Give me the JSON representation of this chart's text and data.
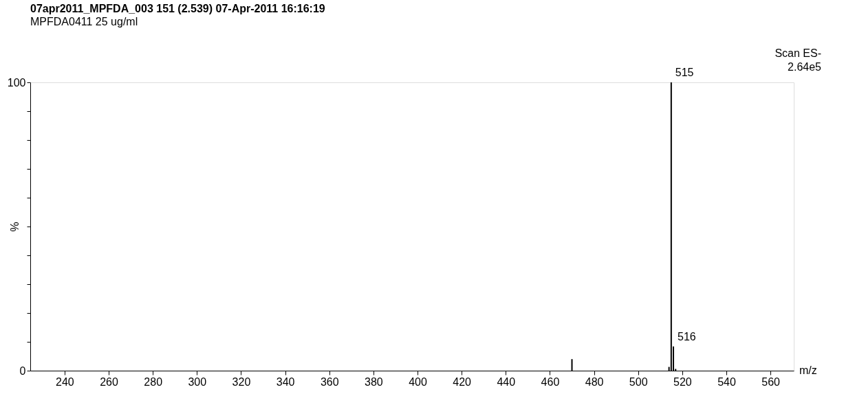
{
  "chart_data": {
    "type": "bar",
    "title": "07apr2011_MPFDA_003  151 (2.539)          07-Apr-2011          16:16:19",
    "subtitle": "MPFDA0411 25 ug/ml",
    "xlabel": "m/z",
    "ylabel": "%",
    "annotations": [
      "Scan ES-",
      "2.64e5",
      {
        "text": "515",
        "x": 515,
        "y": 100
      },
      {
        "text": "516",
        "x": 516,
        "y": 8.4
      }
    ],
    "x": [
      470,
      514,
      515,
      516,
      517
    ],
    "values": [
      4,
      1.3,
      100,
      8.4,
      0.6
    ],
    "color": "#000000",
    "xlim": [
      226,
      569
    ],
    "xticks": [
      240,
      260,
      280,
      300,
      320,
      340,
      360,
      380,
      400,
      420,
      440,
      460,
      480,
      500,
      520,
      540,
      560
    ],
    "ylim": [
      0,
      100
    ],
    "yticks": [
      0,
      {
        "value": 10,
        "label": null
      },
      {
        "value": 20,
        "label": null
      },
      {
        "value": 30,
        "label": null
      },
      {
        "value": 40,
        "label": null
      },
      {
        "value": 50,
        "label": null
      },
      {
        "value": 60,
        "label": null
      },
      {
        "value": 70,
        "label": null
      },
      {
        "value": 80,
        "label": null
      },
      {
        "value": 90,
        "label": null
      },
      100
    ],
    "grid": false
  }
}
